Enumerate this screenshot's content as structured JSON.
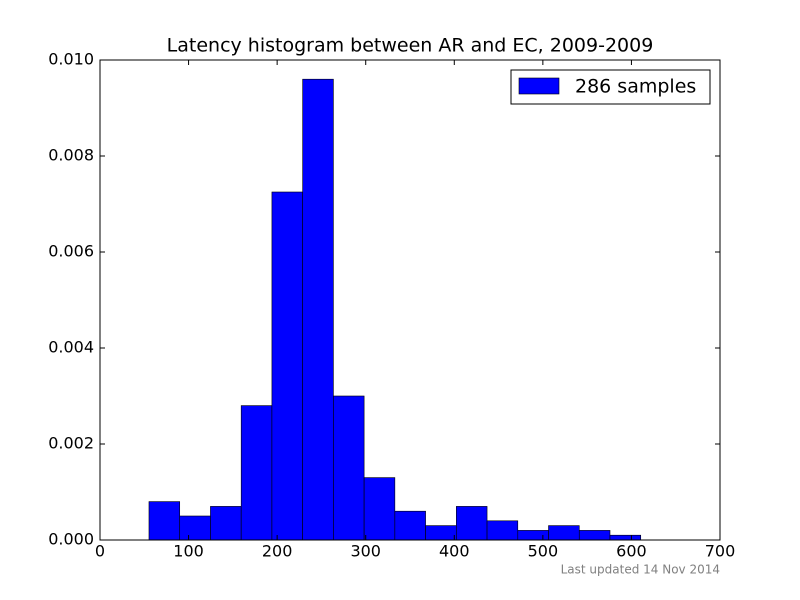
{
  "chart_data": {
    "type": "histogram",
    "title": "Latency histogram between AR and EC, 2009-2009",
    "footer": "Last updated 14 Nov 2014",
    "bins": [
      55.3,
      90.0,
      124.7,
      159.4,
      194.1,
      228.8,
      263.5,
      298.2,
      332.9,
      367.6,
      402.3,
      437.0,
      471.7,
      506.4,
      541.1,
      575.8,
      610.5
    ],
    "series": [
      {
        "name": "286 samples",
        "color": "#0000ff",
        "values": [
          0.0008,
          0.0005,
          0.0007,
          0.0028,
          0.00725,
          0.0096,
          0.003,
          0.0013,
          0.0006,
          0.0003,
          0.0007,
          0.0004,
          0.0002,
          0.0003,
          0.0002,
          0.0001
        ]
      }
    ],
    "xlim": [
      0,
      700
    ],
    "xticks": [
      0,
      100,
      200,
      300,
      400,
      500,
      600,
      700
    ],
    "ylim": [
      0,
      0.01
    ],
    "yticks": [
      {
        "value": 0,
        "label": "0.000"
      },
      {
        "value": 0.002,
        "label": "0.002"
      },
      {
        "value": 0.004,
        "label": "0.004"
      },
      {
        "value": 0.006,
        "label": "0.006"
      },
      {
        "value": 0.008,
        "label": "0.008"
      },
      {
        "value": 0.01,
        "label": "0.010"
      }
    ],
    "legend": "upper right"
  }
}
